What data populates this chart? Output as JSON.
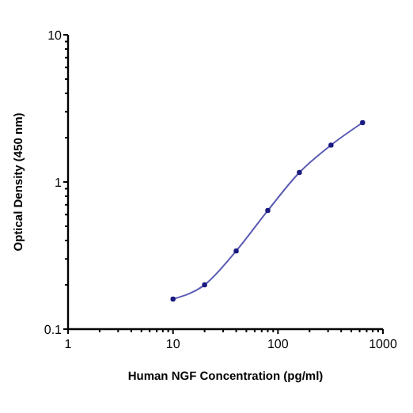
{
  "chart_data": {
    "type": "line",
    "xlabel": "Human NGF Concentration (pg/ml)",
    "ylabel": "Optical Density (450 nm)",
    "log": "xy",
    "x": [
      10,
      20,
      40,
      80,
      160,
      320,
      640
    ],
    "series": [
      {
        "color": "#5a5ab4",
        "values": [
          0.16,
          0.2,
          0.34,
          0.64,
          1.16,
          1.78,
          2.53
        ]
      }
    ],
    "xlim": [
      1,
      1000
    ],
    "ylim": [
      0.1,
      10
    ],
    "xticks": [
      1,
      {
        "value": 2,
        "label": null
      },
      {
        "value": 3,
        "label": null
      },
      {
        "value": 4,
        "label": null
      },
      {
        "value": 5,
        "label": null
      },
      {
        "value": 6,
        "label": null
      },
      {
        "value": 7,
        "label": null
      },
      {
        "value": 8,
        "label": null
      },
      {
        "value": 9,
        "label": null
      },
      10,
      {
        "value": 20,
        "label": null
      },
      {
        "value": 30,
        "label": null
      },
      {
        "value": 40,
        "label": null
      },
      {
        "value": 50,
        "label": null
      },
      {
        "value": 60,
        "label": null
      },
      {
        "value": 70,
        "label": null
      },
      {
        "value": 80,
        "label": null
      },
      {
        "value": 90,
        "label": null
      },
      100,
      {
        "value": 200,
        "label": null
      },
      {
        "value": 300,
        "label": null
      },
      {
        "value": 400,
        "label": null
      },
      {
        "value": 500,
        "label": null
      },
      {
        "value": 600,
        "label": null
      },
      {
        "value": 700,
        "label": null
      },
      {
        "value": 800,
        "label": null
      },
      {
        "value": 900,
        "label": null
      },
      1000
    ],
    "yticks": [
      0.1,
      {
        "value": 0.2,
        "label": null
      },
      {
        "value": 0.3,
        "label": null
      },
      {
        "value": 0.4,
        "label": null
      },
      {
        "value": 0.5,
        "label": null
      },
      {
        "value": 0.6,
        "label": null
      },
      {
        "value": 0.7,
        "label": null
      },
      {
        "value": 0.8,
        "label": null
      },
      {
        "value": 0.9,
        "label": null
      },
      1,
      {
        "value": 2,
        "label": null
      },
      {
        "value": 3,
        "label": null
      },
      {
        "value": 4,
        "label": null
      },
      {
        "value": 5,
        "label": null
      },
      {
        "value": 6,
        "label": null
      },
      {
        "value": 7,
        "label": null
      },
      {
        "value": 8,
        "label": null
      },
      {
        "value": 9,
        "label": null
      },
      10
    ],
    "grid": false,
    "marker": "circle",
    "line_style": "solid"
  }
}
